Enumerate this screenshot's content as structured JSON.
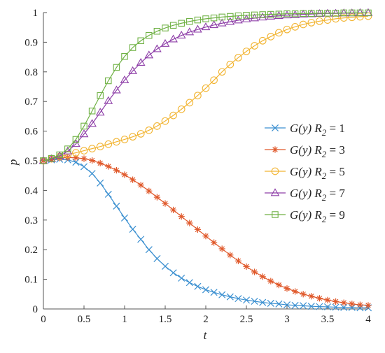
{
  "chart_data": {
    "type": "line",
    "title": "",
    "xlabel": "t",
    "ylabel": "p",
    "xlim": [
      0,
      4
    ],
    "ylim": [
      0,
      1
    ],
    "xticks": [
      0,
      0.5,
      1,
      1.5,
      2,
      2.5,
      3,
      3.5,
      4
    ],
    "xtick_labels": [
      "0",
      "0.5",
      "1",
      "1.5",
      "2",
      "2.5",
      "3",
      "3.5",
      "4"
    ],
    "yticks": [
      0,
      0.1,
      0.2,
      0.3,
      0.4,
      0.5,
      0.6,
      0.7,
      0.8,
      0.9,
      1
    ],
    "ytick_labels": [
      "0",
      "0.1",
      "0.2",
      "0.3",
      "0.4",
      "0.5",
      "0.6",
      "0.7",
      "0.8",
      "0.9",
      "1"
    ],
    "grid": false,
    "legend_position": "right",
    "x": [
      0,
      0.1,
      0.2,
      0.3,
      0.4,
      0.5,
      0.6,
      0.7,
      0.8,
      0.9,
      1.0,
      1.1,
      1.2,
      1.3,
      1.4,
      1.5,
      1.6,
      1.7,
      1.8,
      1.9,
      2.0,
      2.1,
      2.2,
      2.3,
      2.4,
      2.5,
      2.6,
      2.7,
      2.8,
      2.9,
      3.0,
      3.1,
      3.2,
      3.3,
      3.4,
      3.5,
      3.6,
      3.7,
      3.8,
      3.9,
      4.0
    ],
    "series": [
      {
        "name": "G(y) R2 = 1",
        "legend_prefix": "G(y) R",
        "legend_sub": "2",
        "legend_suffix": " = 1",
        "color": "#3a8fd0",
        "marker": "x",
        "values": [
          0.5,
          0.503,
          0.505,
          0.503,
          0.495,
          0.48,
          0.457,
          0.425,
          0.387,
          0.347,
          0.307,
          0.269,
          0.235,
          0.2,
          0.17,
          0.144,
          0.122,
          0.104,
          0.089,
          0.076,
          0.065,
          0.056,
          0.048,
          0.041,
          0.035,
          0.03,
          0.026,
          0.022,
          0.019,
          0.017,
          0.014,
          0.012,
          0.011,
          0.009,
          0.008,
          0.007,
          0.006,
          0.005,
          0.005,
          0.004,
          0.004
        ]
      },
      {
        "name": "G(y) R2 = 3",
        "legend_prefix": "G(y) R",
        "legend_sub": "2",
        "legend_suffix": " = 3",
        "color": "#e0582a",
        "marker": "star",
        "values": [
          0.5,
          0.505,
          0.509,
          0.511,
          0.51,
          0.507,
          0.501,
          0.492,
          0.481,
          0.468,
          0.453,
          0.436,
          0.418,
          0.398,
          0.377,
          0.356,
          0.334,
          0.312,
          0.29,
          0.268,
          0.246,
          0.224,
          0.203,
          0.182,
          0.162,
          0.143,
          0.125,
          0.109,
          0.094,
          0.081,
          0.069,
          0.059,
          0.05,
          0.043,
          0.036,
          0.03,
          0.025,
          0.021,
          0.017,
          0.014,
          0.012
        ]
      },
      {
        "name": "G(y) R2 = 5",
        "legend_prefix": "G(y) R",
        "legend_sub": "2",
        "legend_suffix": " = 5",
        "color": "#f2b431",
        "marker": "circle",
        "values": [
          0.5,
          0.507,
          0.514,
          0.521,
          0.527,
          0.534,
          0.541,
          0.548,
          0.556,
          0.564,
          0.572,
          0.581,
          0.591,
          0.603,
          0.617,
          0.634,
          0.653,
          0.674,
          0.696,
          0.72,
          0.745,
          0.772,
          0.8,
          0.825,
          0.848,
          0.869,
          0.888,
          0.905,
          0.919,
          0.932,
          0.943,
          0.952,
          0.96,
          0.966,
          0.971,
          0.975,
          0.979,
          0.982,
          0.984,
          0.986,
          0.988
        ]
      },
      {
        "name": "G(y) R2 = 7",
        "legend_prefix": "G(y) R",
        "legend_sub": "2",
        "legend_suffix": " = 7",
        "color": "#8e3fa8",
        "marker": "triangle",
        "values": [
          0.5,
          0.506,
          0.516,
          0.532,
          0.557,
          0.59,
          0.625,
          0.663,
          0.702,
          0.738,
          0.772,
          0.803,
          0.831,
          0.856,
          0.877,
          0.895,
          0.91,
          0.923,
          0.934,
          0.943,
          0.951,
          0.958,
          0.964,
          0.969,
          0.974,
          0.978,
          0.981,
          0.984,
          0.987,
          0.989,
          0.991,
          0.992,
          0.994,
          0.995,
          0.996,
          0.997,
          0.997,
          0.998,
          0.998,
          0.999,
          0.999
        ]
      },
      {
        "name": "G(y) R2 = 9",
        "legend_prefix": "G(y) R",
        "legend_sub": "2",
        "legend_suffix": " = 9",
        "color": "#6fb144",
        "marker": "square",
        "values": [
          0.5,
          0.508,
          0.52,
          0.54,
          0.572,
          0.617,
          0.668,
          0.72,
          0.77,
          0.815,
          0.852,
          0.882,
          0.905,
          0.923,
          0.937,
          0.948,
          0.957,
          0.964,
          0.97,
          0.975,
          0.979,
          0.982,
          0.985,
          0.987,
          0.989,
          0.991,
          0.992,
          0.993,
          0.994,
          0.995,
          0.996,
          0.996,
          0.997,
          0.997,
          0.998,
          0.998,
          0.998,
          0.999,
          0.999,
          0.999,
          0.999
        ]
      }
    ]
  }
}
